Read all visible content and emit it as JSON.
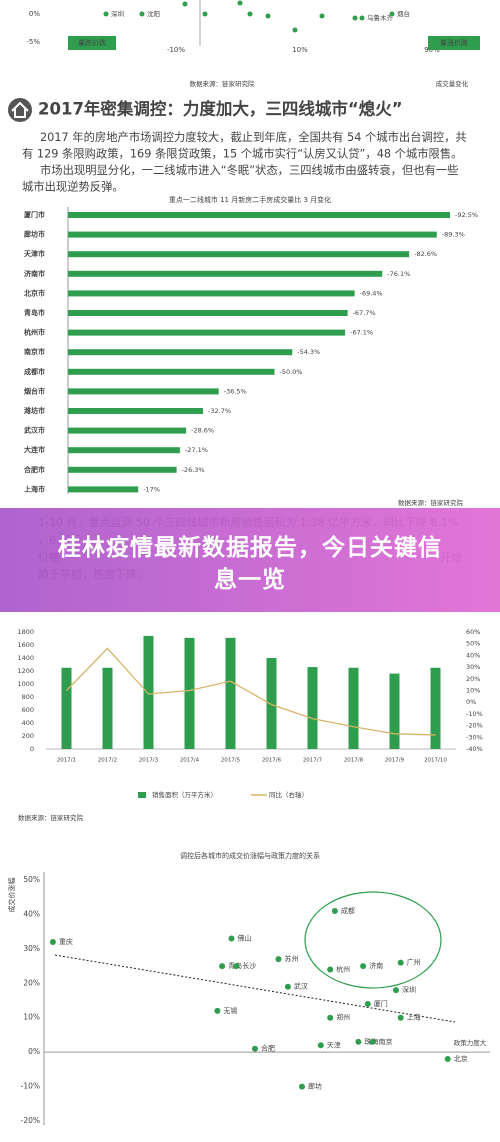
{
  "top_fragment": {
    "y_labels": [
      "0%",
      "-5%"
    ],
    "x_labels": [
      "-10%",
      "10%",
      "90%"
    ],
    "point_labels": [
      "深圳",
      "沈阳",
      "乌鲁木齐",
      "烟台"
    ],
    "quadrant_left": "量跌价跌",
    "quadrant_right": "量涨价跌",
    "source": "数据来源：链家研究院",
    "x_axis_title": "成交量变化"
  },
  "article": {
    "heading": "2017年密集调控：力度加大，三四线城市“熄火”",
    "paragraphs": [
      [
        "2017 年的房地产市场调控力度较大，截止到年底，全国共有 54 个城市出台调控，共",
        "有 129 条限购政策，169 条限贷政策，15 个城市实行“认房又认贷”，48 个城市限售。"
      ],
      [
        "市场出现明显分化，一二线城市进入“冬眠”状态，三四线城市由盛转衰，但也有一些",
        "城市出现逆势反弹。"
      ]
    ]
  },
  "paragraph2": {
    "lines": [
      "1-10 月，重点监测 50 个三四线城市新房销售面积为 1.38 亿平方米，同比下降 8.1%",
      "，6 月后",
      "价格",
      "开始",
      "趋于平稳，热度下降。"
    ]
  },
  "banner": {
    "title": "桂林疫情最新数据报告，今日关键信息一览"
  },
  "chart_data": [
    {
      "type": "bar",
      "orientation": "horizontal",
      "title": "重点一二线城市 11 月新房二手房成交量比 3 月变化",
      "categories": [
        "厦门市",
        "廊坊市",
        "天津市",
        "济南市",
        "北京市",
        "青岛市",
        "杭州市",
        "南京市",
        "成都市",
        "烟台市",
        "潍坊市",
        "武汉市",
        "大连市",
        "合肥市",
        "上海市"
      ],
      "values": [
        -92.5,
        -89.3,
        -82.6,
        -76.1,
        -69.4,
        -67.7,
        -67.1,
        -54.3,
        -50.0,
        -36.5,
        -32.7,
        -28.6,
        -27.1,
        -26.3,
        -17
      ],
      "value_labels": [
        "-92.5%",
        "-89.3%",
        "-82.6%",
        "-76.1%",
        "-69.4%",
        "-67.7%",
        "-67.1%",
        "-54.3%",
        "-50.0%",
        "-36.5%",
        "-32.7%",
        "-28.6%",
        "-27.1%",
        "-26.3%",
        "-17%"
      ],
      "color": "#2e9e4e",
      "source": "数据来源：链家研究院"
    },
    {
      "type": "combo",
      "categories": [
        "2017/1",
        "2017/2",
        "2017/3",
        "2017/4",
        "2017/5",
        "2017/6",
        "2017/7",
        "2017/8",
        "2017/9",
        "2017/10"
      ],
      "series": [
        {
          "name": "销售面积（万平方米）",
          "color": "#2e9e4e",
          "kind": "bar",
          "values": [
            1250,
            1250,
            1740,
            1710,
            1710,
            1400,
            1260,
            1250,
            1160,
            1250
          ]
        },
        {
          "name": "同比（右轴）",
          "color": "#d8b468",
          "kind": "line",
          "axis": "y2",
          "values": [
            10,
            46,
            7,
            10,
            18,
            -2,
            -14,
            -21,
            -27,
            -28
          ]
        }
      ],
      "ylim": [
        0,
        1800
      ],
      "yticks": [
        0,
        200,
        400,
        600,
        800,
        1000,
        1200,
        1400,
        1600,
        1800
      ],
      "y2lim": [
        -40,
        60
      ],
      "y2ticks": [
        {
          "value": -40,
          "label": "-40%"
        },
        {
          "value": -30,
          "label": "-30%"
        },
        {
          "value": -20,
          "label": "-20%"
        },
        {
          "value": -10,
          "label": "-10%"
        },
        {
          "value": 0,
          "label": "0%"
        },
        {
          "value": 10,
          "label": "10%"
        },
        {
          "value": 20,
          "label": "20%"
        },
        {
          "value": 30,
          "label": "30%"
        },
        {
          "value": 40,
          "label": "40%"
        },
        {
          "value": 50,
          "label": "50%"
        },
        {
          "value": 60,
          "label": "60%"
        }
      ],
      "legend": "bottom",
      "source": "数据来源：链家研究院"
    },
    {
      "type": "scatter",
      "title": "调控后各城市的成交价涨幅与政策力度的关系",
      "y_label": "成交价涨幅",
      "x_label": "政策力度大",
      "labels": [
        "重庆",
        "佛山",
        "青岛",
        "长沙",
        "苏州",
        "成都",
        "杭州",
        "济南",
        "广州",
        "武汉",
        "深圳",
        "厦门",
        "无锡",
        "郑州",
        "上海",
        "天津",
        "珠海",
        "南京",
        "合肥",
        "北京",
        "廊坊"
      ],
      "x": [
        7,
        45,
        43,
        46,
        55,
        67,
        66,
        73,
        81,
        57,
        80,
        74,
        42,
        66,
        81,
        64,
        72,
        75,
        50,
        91,
        60
      ],
      "y": [
        32,
        33,
        25,
        25,
        27,
        41,
        24,
        25,
        26,
        19,
        18,
        14,
        12,
        10,
        10,
        2,
        3,
        3,
        1,
        -2,
        -10
      ],
      "xlim": [
        0,
        100
      ],
      "ylim": [
        -20,
        50
      ],
      "yticks": [
        {
          "value": -20,
          "label": "-20%"
        },
        {
          "value": -10,
          "label": "-10%"
        },
        {
          "value": 0,
          "label": "0%"
        },
        {
          "value": 10,
          "label": "10%"
        },
        {
          "value": 20,
          "label": "20%"
        },
        {
          "value": 30,
          "label": "30%"
        },
        {
          "value": 40,
          "label": "40%"
        },
        {
          "value": 50,
          "label": "50%"
        }
      ],
      "color": "#2e9e4e"
    }
  ]
}
